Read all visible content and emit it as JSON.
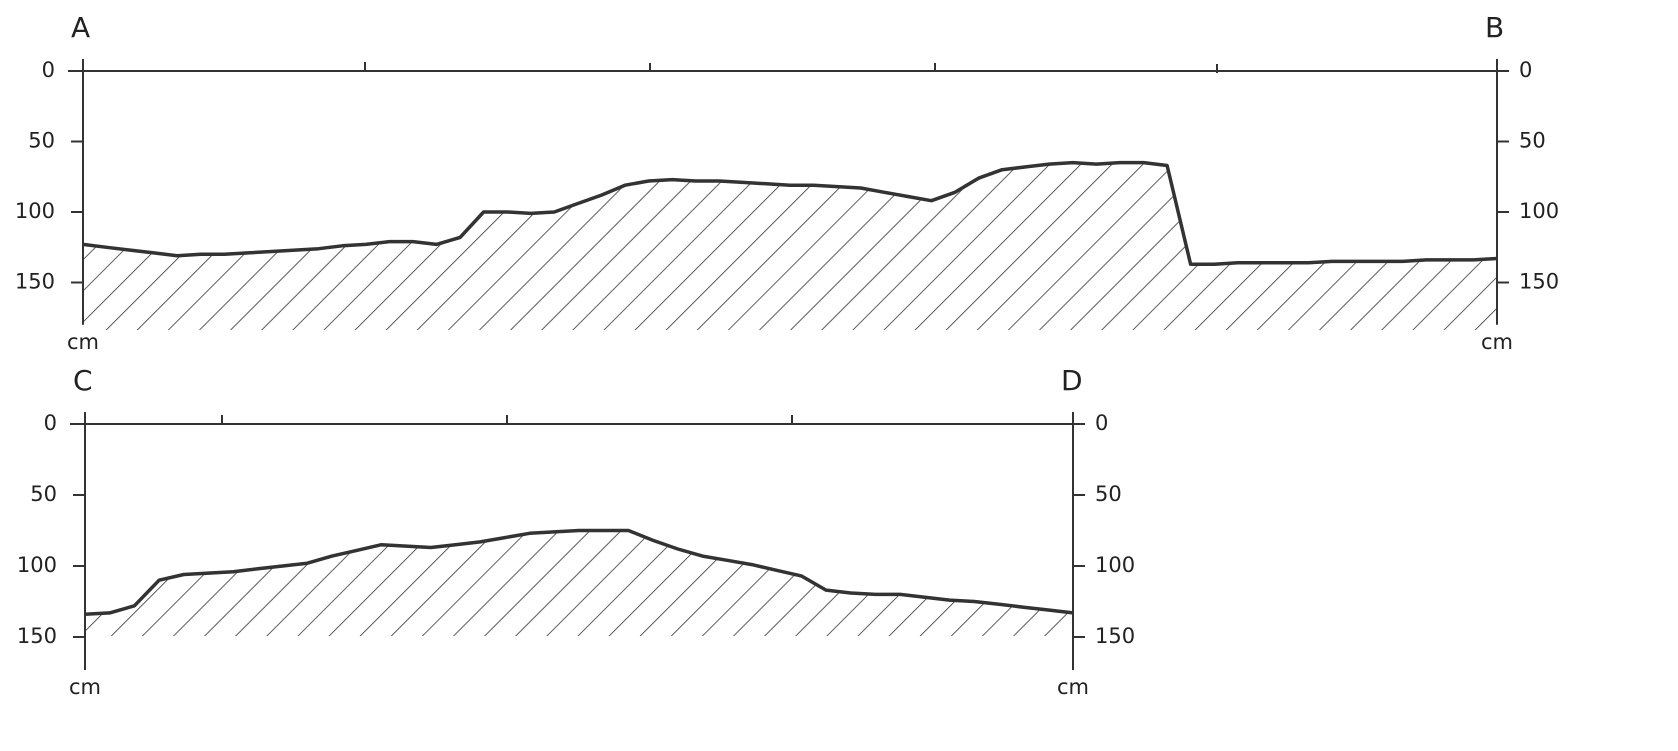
{
  "chart_data": [
    {
      "type": "area",
      "title_left": "A",
      "title_right": "B",
      "ylabel": "cm",
      "ylim": [
        0,
        180
      ],
      "yticks": [
        0,
        50,
        100,
        150
      ],
      "color": "#333333",
      "hatch": true,
      "categories": [
        null,
        null,
        null,
        null,
        null,
        null,
        null,
        null,
        null,
        null,
        null,
        null,
        null,
        null,
        null,
        null,
        null,
        null,
        null,
        null,
        null,
        null,
        null,
        null,
        null,
        null,
        null,
        null,
        null,
        null,
        null,
        null,
        null,
        null,
        null,
        null,
        null,
        null,
        null,
        null,
        null,
        null,
        null,
        null,
        null,
        null,
        null,
        null,
        null,
        null,
        null,
        null,
        null,
        null,
        null,
        null,
        null,
        null,
        null,
        null,
        null
      ],
      "values": [
        123,
        125,
        127,
        129,
        131,
        130,
        130,
        129,
        128,
        127,
        126,
        124,
        123,
        121,
        121,
        123,
        118,
        100,
        100,
        101,
        100,
        94,
        88,
        81,
        78,
        77,
        78,
        78,
        79,
        80,
        81,
        81,
        82,
        83,
        86,
        89,
        92,
        86,
        76,
        70,
        68,
        66,
        65,
        66,
        65,
        65,
        67,
        137,
        137,
        136,
        136,
        136,
        136,
        135,
        135,
        135,
        135,
        134,
        134,
        134,
        133
      ]
    },
    {
      "type": "area",
      "title_left": "C",
      "title_right": "D",
      "ylabel": "cm",
      "ylim": [
        0,
        180
      ],
      "yticks": [
        0,
        50,
        100,
        150
      ],
      "color": "#333333",
      "hatch": true,
      "categories": [
        null,
        null,
        null,
        null,
        null,
        null,
        null,
        null,
        null,
        null,
        null,
        null,
        null,
        null,
        null,
        null,
        null,
        null,
        null,
        null,
        null,
        null,
        null,
        null,
        null,
        null,
        null,
        null,
        null,
        null,
        null,
        null,
        null,
        null,
        null,
        null,
        null,
        null,
        null,
        null,
        null
      ],
      "values": [
        134,
        133,
        128,
        110,
        106,
        105,
        104,
        102,
        100,
        98,
        93,
        89,
        85,
        86,
        87,
        85,
        83,
        80,
        77,
        76,
        75,
        75,
        75,
        82,
        88,
        93,
        96,
        99,
        103,
        107,
        117,
        119,
        120,
        120,
        122,
        124,
        125,
        127,
        129,
        131,
        133
      ]
    }
  ]
}
